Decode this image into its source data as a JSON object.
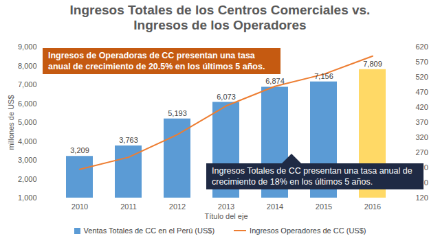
{
  "chart_data": {
    "type": "bar",
    "title": "Ingresos Totales de los Centros Comerciales vs. Ingresos de los Operadores",
    "categories": [
      "2010",
      "2011",
      "2012",
      "2013",
      "2014",
      "2015",
      "2016"
    ],
    "x_label": "Título del eje",
    "y_label": "millones de US$",
    "series": [
      {
        "name": "Ventas Totales de CC en el Perú (US$)",
        "type": "bar",
        "color": "#5b9bd5",
        "colors": [
          "#5b9bd5",
          "#5b9bd5",
          "#5b9bd5",
          "#5b9bd5",
          "#5b9bd5",
          "#5b9bd5",
          "#ffd966"
        ],
        "values": [
          3209,
          3763,
          5193,
          6073,
          6874,
          7156,
          7809
        ],
        "value_labels": [
          "3,209",
          "3,763",
          "5,193",
          "6,073",
          "6,874",
          "7,156",
          "7,809"
        ]
      },
      {
        "name": "Ingresos Operadores de CC (US$)",
        "type": "line",
        "color": "#ed7d31",
        "axis": "y2",
        "values": [
          215,
          255,
          330,
          425,
          490,
          530,
          590
        ]
      }
    ],
    "ylim": [
      1000,
      9000
    ],
    "yticks": [
      {
        "value": 1000,
        "label": "1,000"
      },
      {
        "value": 2000,
        "label": "2,000"
      },
      {
        "value": 3000,
        "label": "3,000"
      },
      {
        "value": 4000,
        "label": "4,000"
      },
      {
        "value": 5000,
        "label": "5,000"
      },
      {
        "value": 6000,
        "label": "6,000"
      },
      {
        "value": 7000,
        "label": "7,000"
      },
      {
        "value": 8000,
        "label": "8,000"
      },
      {
        "value": 9000,
        "label": "9,000"
      }
    ],
    "y2lim": [
      120,
      620
    ],
    "y2ticks": [
      120,
      170,
      220,
      270,
      320,
      370,
      420,
      470,
      520,
      570,
      620
    ],
    "annotations": [
      {
        "text": "Ingresos de Operadoras de CC presentan una tasa anual de crecimiento de 20.5% en los últimos 5 años.",
        "color": "#c55a11"
      },
      {
        "text": "Ingresos Totales de CC presentan una tasa anual de crecimiento de 18% en los últimos 5 años.",
        "color": "#1f2a44"
      }
    ],
    "data_labels": true,
    "legend": "bottom",
    "grid": false
  }
}
